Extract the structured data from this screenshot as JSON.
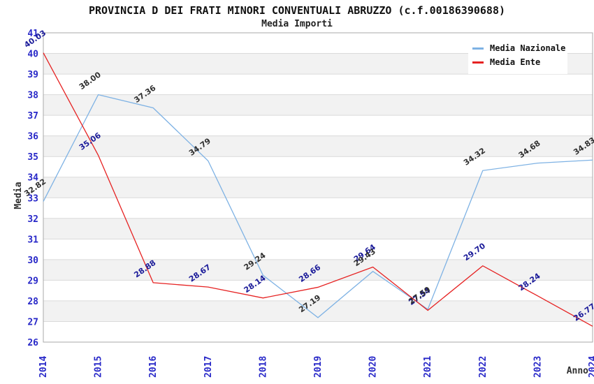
{
  "title": "PROVINCIA D DEI FRATI MINORI CONVENTUALI ABRUZZO (c.f.00186390688)",
  "subtitle": "Media Importi",
  "legend": {
    "items": [
      {
        "label": "Media Nazionale",
        "color": "#7EB2E4"
      },
      {
        "label": "Media Ente",
        "color": "#E62222"
      }
    ]
  },
  "axes": {
    "y_title": "Media",
    "x_title": "Anno",
    "y_min": 26,
    "y_max": 41,
    "y_step": 1
  },
  "style": {
    "band_color": "#F2F2F2",
    "grid_color": "#DADADA",
    "border_color": "#AAAAAA",
    "tick_label_color": "#2828C8",
    "axis_title_color": "#303030"
  },
  "chart_data": {
    "type": "line",
    "title": "PROVINCIA D DEI FRATI MINORI CONVENTUALI ABRUZZO (c.f.00186390688)",
    "subtitle": "Media Importi",
    "xlabel": "Anno",
    "ylabel": "Media",
    "ylim": [
      26,
      41
    ],
    "grid": true,
    "legend_position": "top-right",
    "background_bands": "alternating 1-unit horizontal stripes, gray on odd-to-even intervals",
    "x": [
      2014,
      2015,
      2016,
      2017,
      2018,
      2019,
      2020,
      2021,
      2022,
      2023,
      2024
    ],
    "series": [
      {
        "name": "Media Nazionale",
        "color": "#7EB2E4",
        "label_color": "#303030",
        "values": [
          32.82,
          38.0,
          37.36,
          34.79,
          29.24,
          27.19,
          29.43,
          27.59,
          34.32,
          34.68,
          34.83
        ]
      },
      {
        "name": "Media Ente",
        "color": "#E62222",
        "label_color": "#1A1A99",
        "values": [
          40.03,
          35.06,
          28.88,
          28.67,
          28.14,
          28.66,
          29.64,
          27.54,
          29.7,
          28.24,
          26.77
        ]
      }
    ]
  }
}
